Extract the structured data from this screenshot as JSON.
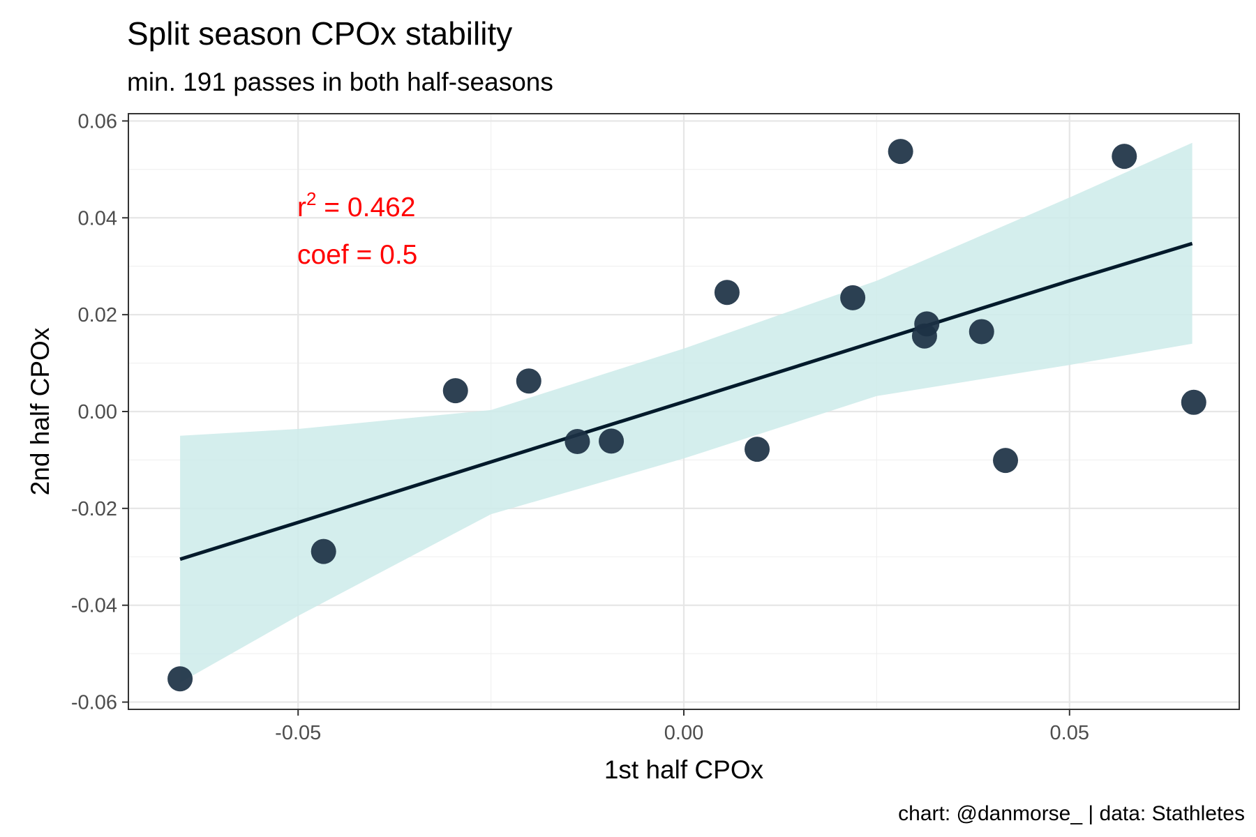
{
  "chart_data": {
    "type": "scatter",
    "title": "Split season CPOx stability",
    "subtitle": "min. 191 passes in both half-seasons",
    "caption": "chart: @danmorse_ | data: Stathletes",
    "xlabel": "1st half CPOx",
    "ylabel": "2nd half CPOx",
    "xlim": [
      -0.072,
      0.072
    ],
    "ylim": [
      -0.0615,
      0.0615
    ],
    "x_ticks": [
      -0.05,
      0.0,
      0.05
    ],
    "x_tick_labels": [
      "-0.05",
      "0.00",
      "0.05"
    ],
    "y_ticks": [
      -0.06,
      -0.04,
      -0.02,
      0.0,
      0.02,
      0.04,
      0.06
    ],
    "y_tick_labels": [
      "-0.06",
      "-0.04",
      "-0.02",
      "0.00",
      "0.02",
      "0.04",
      "0.06"
    ],
    "grid": true,
    "points": [
      {
        "x": -0.0653,
        "y": -0.0552
      },
      {
        "x": -0.0467,
        "y": -0.0289
      },
      {
        "x": -0.0296,
        "y": 0.0043
      },
      {
        "x": -0.0201,
        "y": 0.0063
      },
      {
        "x": -0.0138,
        "y": -0.0062
      },
      {
        "x": -0.0094,
        "y": -0.0061
      },
      {
        "x": 0.0056,
        "y": 0.0246
      },
      {
        "x": 0.0095,
        "y": -0.0078
      },
      {
        "x": 0.0219,
        "y": 0.0235
      },
      {
        "x": 0.0281,
        "y": 0.0537
      },
      {
        "x": 0.0312,
        "y": 0.0156
      },
      {
        "x": 0.0315,
        "y": 0.0181
      },
      {
        "x": 0.0386,
        "y": 0.0165
      },
      {
        "x": 0.0417,
        "y": -0.0101
      },
      {
        "x": 0.0571,
        "y": 0.0527
      },
      {
        "x": 0.0661,
        "y": 0.0019
      }
    ],
    "point_color": "#1c3144",
    "fit": {
      "x": [
        -0.0653,
        -0.05,
        -0.025,
        0.0,
        0.025,
        0.05,
        0.0659
      ],
      "y": [
        -0.0305,
        -0.0229,
        -0.0104,
        0.002,
        0.0145,
        0.027,
        0.0347
      ],
      "ci_lower": [
        -0.056,
        -0.0422,
        -0.0212,
        -0.0097,
        0.0032,
        0.0096,
        0.014
      ],
      "ci_upper": [
        -0.005,
        -0.0036,
        0.0003,
        0.013,
        0.027,
        0.0442,
        0.0555
      ],
      "line_color": "#031a2b",
      "band_color": "#cdebea"
    },
    "annotation_color": "#ff0000",
    "annotations": {
      "r2_label": "r",
      "r2_sup": "2",
      "r2_eq": " = 0.462",
      "coef_text": "coef = 0.5"
    }
  }
}
